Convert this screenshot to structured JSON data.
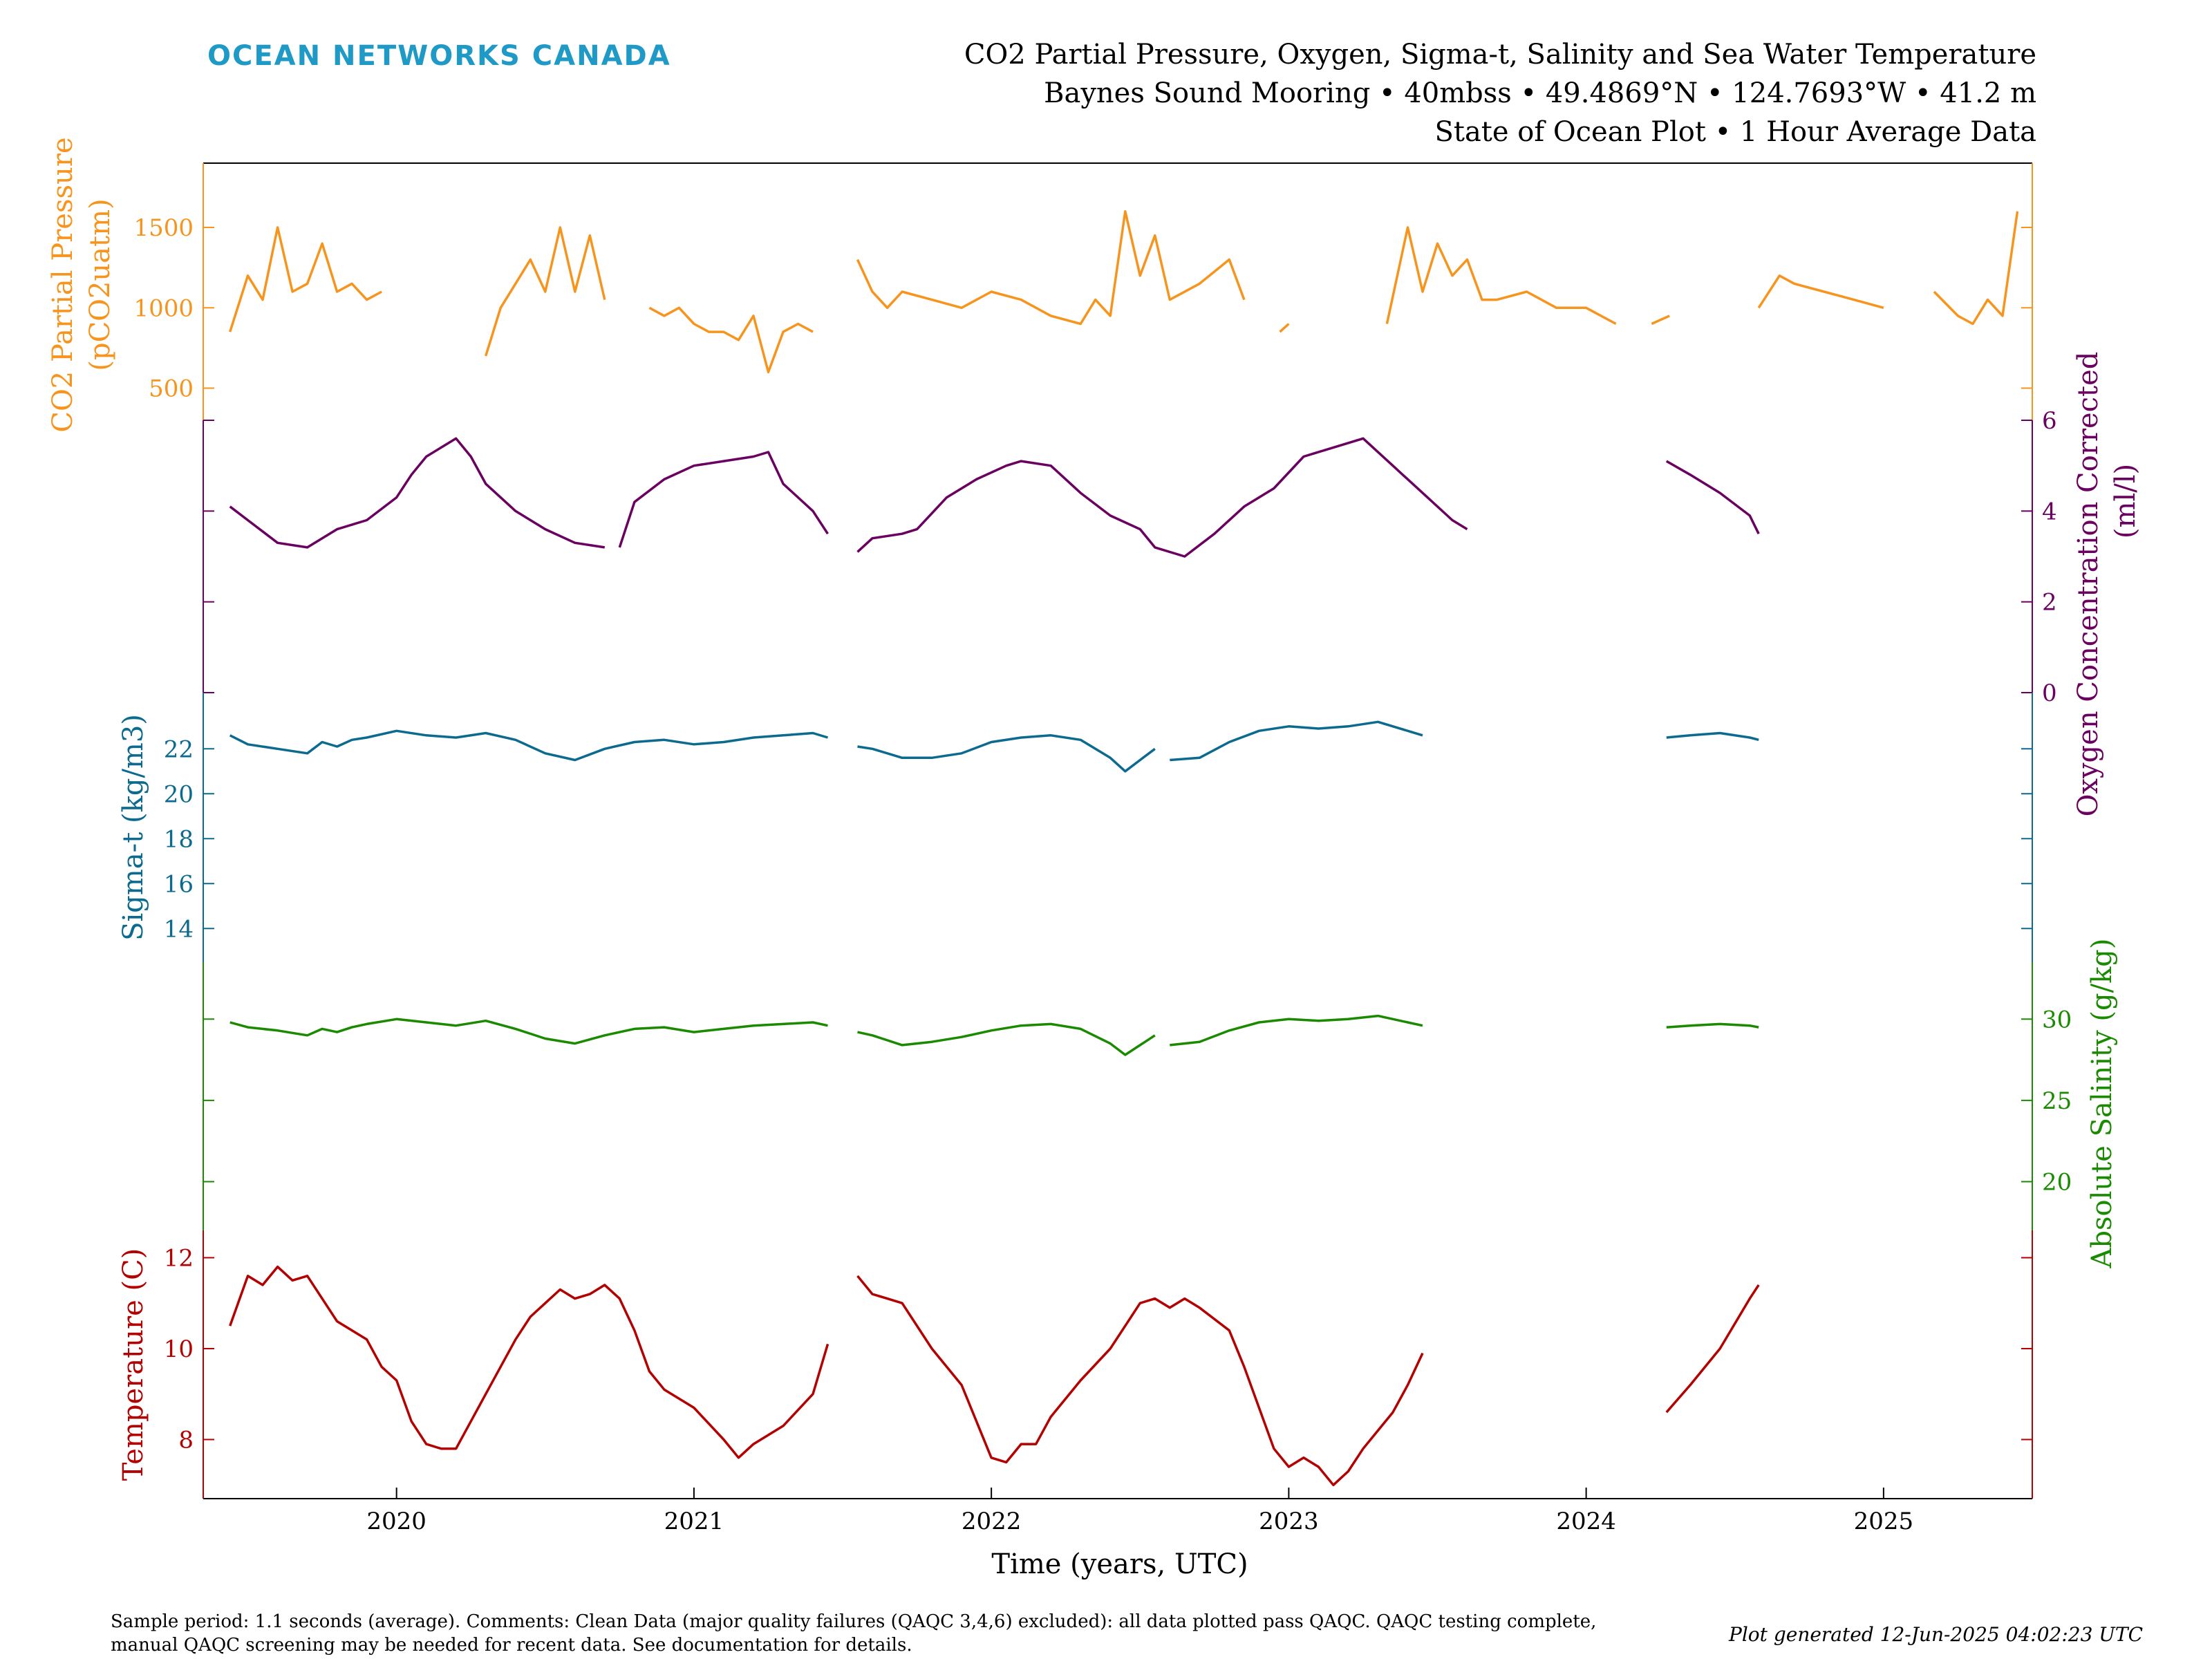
{
  "logo": "OCEAN NETWORKS CANADA",
  "title_lines": [
    "CO2 Partial Pressure, Oxygen, Sigma-t, Salinity and Sea Water Temperature",
    "Baynes Sound Mooring • 40mbss • 49.4869°N • 124.7693°W • 41.2 m",
    "State of Ocean Plot • 1 Hour Average Data"
  ],
  "footer": {
    "comment_lines": [
      "Sample period: 1.1 seconds (average). Comments: Clean Data (major quality failures (QAQC 3,4,6) excluded): all data plotted pass QAQC. QAQC testing complete,",
      "manual QAQC screening may be needed for recent data. See documentation for details."
    ],
    "generated": "Plot generated 12-Jun-2025 04:02:23 UTC"
  },
  "chart_data": {
    "type": "line",
    "xlabel": "Time (years, UTC)",
    "x_ticks": [
      "2020",
      "2021",
      "2022",
      "2023",
      "2024",
      "2025"
    ],
    "xlim": [
      2019.35,
      2025.5
    ],
    "series": [
      {
        "name": "CO2 Partial Pressure",
        "ylabel_main": "CO2 Partial Pressure",
        "ylabel_unit": "(pCO2uatm)",
        "axis_side": "left",
        "color": "#f7941d",
        "ylim": [
          300,
          1900
        ],
        "ticks": [
          "500",
          "1000",
          "1500"
        ],
        "x": [
          2019.44,
          2019.5,
          2019.55,
          2019.6,
          2019.65,
          2019.7,
          2019.75,
          2019.8,
          2019.85,
          2019.9,
          2019.95,
          null,
          2020.3,
          2020.35,
          2020.4,
          2020.45,
          2020.5,
          2020.55,
          2020.6,
          2020.65,
          2020.7,
          null,
          2020.85,
          2020.9,
          2020.95,
          2021.0,
          2021.05,
          2021.1,
          2021.15,
          2021.2,
          2021.25,
          2021.3,
          2021.35,
          2021.4,
          null,
          2021.55,
          2021.6,
          2021.65,
          2021.7,
          2021.8,
          2021.9,
          2022.0,
          2022.1,
          2022.2,
          2022.3,
          2022.35,
          2022.4,
          2022.45,
          2022.5,
          2022.55,
          2022.6,
          2022.7,
          2022.8,
          2022.85,
          null,
          2022.97,
          2023.0,
          null,
          2023.33,
          2023.4,
          2023.45,
          2023.5,
          2023.55,
          2023.6,
          2023.65,
          2023.7,
          2023.8,
          2023.9,
          2024.0,
          2024.1,
          null,
          2024.22,
          2024.28,
          null,
          2024.58,
          2024.65,
          2024.7,
          2024.8,
          2024.9,
          2025.0,
          null,
          2025.17,
          2025.25,
          2025.3,
          2025.35,
          2025.4,
          2025.45
        ],
        "y": [
          850,
          1200,
          1050,
          1500,
          1100,
          1150,
          1400,
          1100,
          1150,
          1050,
          1100,
          null,
          700,
          1000,
          1150,
          1300,
          1100,
          1500,
          1100,
          1450,
          1050,
          null,
          1000,
          950,
          1000,
          900,
          850,
          850,
          800,
          950,
          600,
          850,
          900,
          850,
          null,
          1300,
          1100,
          1000,
          1100,
          1050,
          1000,
          1100,
          1050,
          950,
          900,
          1050,
          950,
          1600,
          1200,
          1450,
          1050,
          1150,
          1300,
          1050,
          null,
          850,
          900,
          null,
          900,
          1500,
          1100,
          1400,
          1200,
          1300,
          1050,
          1050,
          1100,
          1000,
          1000,
          900,
          null,
          900,
          950,
          null,
          1000,
          1200,
          1150,
          1100,
          1050,
          1000,
          null,
          1100,
          950,
          900,
          1050,
          950,
          1600
        ]
      },
      {
        "name": "Oxygen Concentration Corrected",
        "ylabel_main": "Oxygen Concentration Corrected",
        "ylabel_unit": "(ml/l)",
        "axis_side": "right",
        "color": "#6a005f",
        "ylim": [
          0,
          6
        ],
        "ticks": [
          "0",
          "2",
          "4",
          "6"
        ],
        "x": [
          2019.44,
          2019.5,
          2019.6,
          2019.7,
          2019.8,
          2019.9,
          2020.0,
          2020.05,
          2020.1,
          2020.2,
          2020.25,
          2020.3,
          2020.4,
          2020.5,
          2020.6,
          2020.7,
          null,
          2020.75,
          2020.8,
          2020.9,
          2021.0,
          2021.1,
          2021.2,
          2021.25,
          2021.3,
          2021.4,
          2021.45,
          null,
          2021.55,
          2021.6,
          2021.7,
          2021.75,
          2021.85,
          2021.95,
          2022.05,
          2022.1,
          2022.2,
          2022.3,
          2022.4,
          2022.5,
          2022.55,
          2022.65,
          2022.75,
          2022.85,
          2022.95,
          2023.05,
          2023.15,
          2023.25,
          2023.35,
          2023.45,
          2023.55,
          2023.6,
          null,
          2024.27,
          2024.35,
          2024.45,
          2024.55,
          2024.58
        ],
        "y": [
          4.1,
          3.8,
          3.3,
          3.2,
          3.6,
          3.8,
          4.3,
          4.8,
          5.2,
          5.6,
          5.2,
          4.6,
          4.0,
          3.6,
          3.3,
          3.2,
          null,
          3.2,
          4.2,
          4.7,
          5.0,
          5.1,
          5.2,
          5.3,
          4.6,
          4.0,
          3.5,
          null,
          3.1,
          3.4,
          3.5,
          3.6,
          4.3,
          4.7,
          5.0,
          5.1,
          5.0,
          4.4,
          3.9,
          3.6,
          3.2,
          3.0,
          3.5,
          4.1,
          4.5,
          5.2,
          5.4,
          5.6,
          5.0,
          4.4,
          3.8,
          3.6,
          null,
          5.1,
          4.8,
          4.4,
          3.9,
          3.5
        ]
      },
      {
        "name": "Sigma-t",
        "ylabel_main": "Sigma-t (kg/m3)",
        "axis_side": "left",
        "color": "#0b6a8d",
        "ylim": [
          12.5,
          24.5
        ],
        "ticks": [
          "14",
          "16",
          "18",
          "20",
          "22"
        ],
        "x": [
          2019.44,
          2019.5,
          2019.6,
          2019.7,
          2019.75,
          2019.8,
          2019.85,
          2019.9,
          2020.0,
          2020.1,
          2020.2,
          2020.3,
          2020.4,
          2020.5,
          2020.6,
          2020.7,
          2020.8,
          2020.9,
          2021.0,
          2021.1,
          2021.2,
          2021.3,
          2021.4,
          2021.45,
          null,
          2021.55,
          2021.6,
          2021.7,
          2021.8,
          2021.9,
          2022.0,
          2022.1,
          2022.2,
          2022.3,
          2022.4,
          2022.45,
          2022.5,
          2022.55,
          null,
          2022.6,
          2022.7,
          2022.8,
          2022.9,
          2023.0,
          2023.1,
          2023.2,
          2023.3,
          2023.4,
          2023.45,
          null,
          2024.27,
          2024.35,
          2024.45,
          2024.55,
          2024.58
        ],
        "y": [
          22.6,
          22.2,
          22.0,
          21.8,
          22.3,
          22.1,
          22.4,
          22.5,
          22.8,
          22.6,
          22.5,
          22.7,
          22.4,
          21.8,
          21.5,
          22.0,
          22.3,
          22.4,
          22.2,
          22.3,
          22.5,
          22.6,
          22.7,
          22.5,
          null,
          22.1,
          22.0,
          21.6,
          21.6,
          21.8,
          22.3,
          22.5,
          22.6,
          22.4,
          21.6,
          21.0,
          21.5,
          22.0,
          null,
          21.5,
          21.6,
          22.3,
          22.8,
          23.0,
          22.9,
          23.0,
          23.2,
          22.8,
          22.6,
          null,
          22.5,
          22.6,
          22.7,
          22.5,
          22.4
        ]
      },
      {
        "name": "Absolute Salinity",
        "ylabel_main": "Absolute Salinity (g/kg)",
        "axis_side": "right",
        "color": "#1a8a00",
        "ylim": [
          17,
          33.5
        ],
        "ticks": [
          "20",
          "25",
          "30"
        ],
        "x": [
          2019.44,
          2019.5,
          2019.6,
          2019.7,
          2019.75,
          2019.8,
          2019.85,
          2019.9,
          2020.0,
          2020.1,
          2020.2,
          2020.3,
          2020.4,
          2020.5,
          2020.6,
          2020.7,
          2020.8,
          2020.9,
          2021.0,
          2021.1,
          2021.2,
          2021.3,
          2021.4,
          2021.45,
          null,
          2021.55,
          2021.6,
          2021.7,
          2021.8,
          2021.9,
          2022.0,
          2022.1,
          2022.2,
          2022.3,
          2022.4,
          2022.45,
          2022.5,
          2022.55,
          null,
          2022.6,
          2022.7,
          2022.8,
          2022.9,
          2023.0,
          2023.1,
          2023.2,
          2023.3,
          2023.4,
          2023.45,
          null,
          2024.27,
          2024.35,
          2024.45,
          2024.55,
          2024.58
        ],
        "y": [
          29.8,
          29.5,
          29.3,
          29.0,
          29.4,
          29.2,
          29.5,
          29.7,
          30.0,
          29.8,
          29.6,
          29.9,
          29.4,
          28.8,
          28.5,
          29.0,
          29.4,
          29.5,
          29.2,
          29.4,
          29.6,
          29.7,
          29.8,
          29.6,
          null,
          29.2,
          29.0,
          28.4,
          28.6,
          28.9,
          29.3,
          29.6,
          29.7,
          29.4,
          28.5,
          27.8,
          28.4,
          29.0,
          null,
          28.4,
          28.6,
          29.3,
          29.8,
          30.0,
          29.9,
          30.0,
          30.2,
          29.8,
          29.6,
          null,
          29.5,
          29.6,
          29.7,
          29.6,
          29.5
        ]
      },
      {
        "name": "Temperature",
        "ylabel_main": "Temperature (C)",
        "axis_side": "left",
        "color": "#b30000",
        "ylim": [
          6.7,
          12.6
        ],
        "ticks": [
          "8",
          "10",
          "12"
        ],
        "x": [
          2019.44,
          2019.5,
          2019.55,
          2019.6,
          2019.65,
          2019.7,
          2019.8,
          2019.9,
          2019.95,
          2020.0,
          2020.05,
          2020.1,
          2020.15,
          2020.2,
          2020.25,
          2020.3,
          2020.35,
          2020.4,
          2020.45,
          2020.5,
          2020.55,
          2020.6,
          2020.65,
          2020.7,
          2020.75,
          2020.8,
          2020.85,
          2020.9,
          2021.0,
          2021.1,
          2021.15,
          2021.2,
          2021.3,
          2021.4,
          2021.45,
          null,
          2021.55,
          2021.6,
          2021.65,
          2021.7,
          2021.8,
          2021.9,
          2022.0,
          2022.05,
          2022.1,
          2022.15,
          2022.2,
          2022.3,
          2022.4,
          2022.45,
          2022.5,
          2022.55,
          2022.6,
          2022.65,
          2022.7,
          2022.8,
          2022.85,
          2022.9,
          2022.95,
          2023.0,
          2023.05,
          2023.1,
          2023.15,
          2023.2,
          2023.25,
          2023.3,
          2023.35,
          2023.4,
          2023.45,
          null,
          2024.27,
          2024.35,
          2024.45,
          2024.55,
          2024.58
        ],
        "y": [
          10.5,
          11.6,
          11.4,
          11.8,
          11.5,
          11.6,
          10.6,
          10.2,
          9.6,
          9.3,
          8.4,
          7.9,
          7.8,
          7.8,
          8.4,
          9.0,
          9.6,
          10.2,
          10.7,
          11.0,
          11.3,
          11.1,
          11.2,
          11.4,
          11.1,
          10.4,
          9.5,
          9.1,
          8.7,
          8.0,
          7.6,
          7.9,
          8.3,
          9.0,
          10.1,
          null,
          11.6,
          11.2,
          11.1,
          11.0,
          10.0,
          9.2,
          7.6,
          7.5,
          7.9,
          7.9,
          8.5,
          9.3,
          10.0,
          10.5,
          11.0,
          11.1,
          10.9,
          11.1,
          10.9,
          10.4,
          9.6,
          8.7,
          7.8,
          7.4,
          7.6,
          7.4,
          7.0,
          7.3,
          7.8,
          8.2,
          8.6,
          9.2,
          9.9,
          null,
          8.6,
          9.2,
          10.0,
          11.1,
          11.4
        ]
      }
    ]
  }
}
